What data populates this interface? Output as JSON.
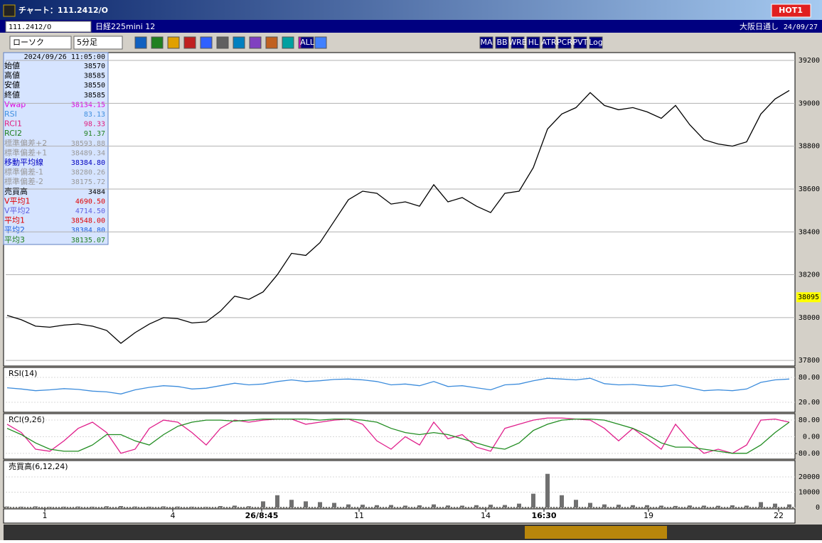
{
  "window": {
    "title": "チャート：111.2412/O",
    "hot": "HOT1"
  },
  "symbol_bar": {
    "code": "111.2412/O",
    "name": "日経225mini 12",
    "session": "大阪日通し",
    "date": "24/09/27"
  },
  "toolbar": {
    "chart_kind": "ローソク",
    "interval": "5分足",
    "buttons": [
      "ALL",
      "MA",
      "BB",
      "WRE",
      "HL",
      "ATR",
      "PCR",
      "PVT",
      "Log"
    ]
  },
  "info_panel": {
    "timestamp": "2024/09/26  11:05:00",
    "rows": [
      [
        "始値",
        "38570"
      ],
      [
        "高値",
        "38585"
      ],
      [
        "安値",
        "38550"
      ],
      [
        "終値",
        "38585"
      ],
      [
        "Vwap",
        "38134.15"
      ],
      [
        "RSI",
        "83.13"
      ],
      [
        "RCI1",
        "98.33"
      ],
      [
        "RCI2",
        "91.37"
      ],
      [
        "標準偏差+2",
        "38593.88"
      ],
      [
        "標準偏差+1",
        "38489.34"
      ],
      [
        "移動平均線",
        "38384.80"
      ],
      [
        "標準偏差-1",
        "38280.26"
      ],
      [
        "標準偏差-2",
        "38175.72"
      ],
      [
        "売買高",
        "3484"
      ],
      [
        "V平均1",
        "4690.50"
      ],
      [
        "V平均2",
        "4714.50"
      ],
      [
        "平均1",
        "38548.00"
      ],
      [
        "平均2",
        "38384.80"
      ],
      [
        "平均3",
        "38135.07"
      ]
    ]
  },
  "chart_data": [
    {
      "type": "line",
      "color": "#000000",
      "last_label": 38095,
      "grid": true,
      "xlim": [
        -0.1,
        55.4
      ],
      "ylim": [
        37774,
        39230
      ],
      "yticks": [
        39200,
        39000,
        38800,
        38600,
        38400,
        38200,
        38000,
        37800
      ],
      "xticks": [
        {
          "value": 2.65,
          "label": "1"
        },
        {
          "value": 11.65,
          "label": "4"
        },
        {
          "value": 17.9,
          "label": "26/8:45"
        },
        {
          "value": 24.75,
          "label": "11"
        },
        {
          "value": 33.65,
          "label": "14"
        },
        {
          "value": 37.75,
          "label": "16:30"
        },
        {
          "value": 45.1,
          "label": "19"
        },
        {
          "value": 54.25,
          "label": "22"
        }
      ],
      "values": [
        38010,
        37990,
        37960,
        37955,
        37965,
        37970,
        37960,
        37940,
        37880,
        37930,
        37970,
        38000,
        37995,
        37975,
        37980,
        38030,
        38100,
        38085,
        38120,
        38200,
        38300,
        38290,
        38350,
        38450,
        38550,
        38590,
        38580,
        38530,
        38540,
        38520,
        38620,
        38540,
        38560,
        38520,
        38490,
        38580,
        38590,
        38700,
        38880,
        38950,
        38980,
        39050,
        38990,
        38970,
        38980,
        38960,
        38930,
        38990,
        38900,
        38830,
        38810,
        38800,
        38820,
        38950,
        39020,
        39060
      ]
    },
    {
      "type": "line",
      "title": "RSI(14)",
      "xlim": [
        -0.1,
        55.4
      ],
      "ylim": [
        -4,
        104
      ],
      "yticks": [
        {
          "value": 80,
          "label": "80.00"
        },
        {
          "value": 20,
          "label": "20.00"
        }
      ],
      "series": [
        {
          "color": "#3c8cdc",
          "values": [
            55,
            52,
            48,
            50,
            53,
            51,
            47,
            45,
            40,
            50,
            56,
            60,
            58,
            52,
            54,
            60,
            66,
            62,
            64,
            70,
            74,
            70,
            72,
            75,
            76,
            74,
            70,
            62,
            64,
            60,
            70,
            58,
            60,
            55,
            50,
            62,
            64,
            72,
            78,
            76,
            74,
            78,
            65,
            62,
            63,
            60,
            58,
            62,
            55,
            48,
            50,
            48,
            52,
            68,
            74,
            76
          ]
        }
      ]
    },
    {
      "type": "line",
      "title": "RCI(9,26)",
      "xlim": [
        -0.1,
        55.4
      ],
      "ylim": [
        -108,
        111
      ],
      "yticks": [
        {
          "value": 80,
          "label": "80.00"
        },
        {
          "value": 0,
          "label": "0.00"
        },
        {
          "value": -80,
          "label": "-80.00"
        }
      ],
      "series": [
        {
          "color": "#e0208c",
          "values": [
            60,
            20,
            -60,
            -70,
            -20,
            40,
            70,
            20,
            -80,
            -60,
            40,
            80,
            70,
            20,
            -40,
            40,
            80,
            70,
            80,
            85,
            85,
            60,
            70,
            80,
            85,
            60,
            -20,
            -60,
            0,
            -40,
            70,
            -10,
            10,
            -50,
            -70,
            40,
            60,
            80,
            90,
            90,
            85,
            80,
            40,
            -20,
            40,
            -10,
            -60,
            60,
            -20,
            -80,
            -60,
            -80,
            -40,
            80,
            85,
            70
          ]
        },
        {
          "color": "#208c20",
          "values": [
            40,
            10,
            -30,
            -60,
            -70,
            -70,
            -40,
            10,
            10,
            -20,
            -40,
            10,
            50,
            70,
            80,
            80,
            75,
            80,
            85,
            85,
            85,
            85,
            80,
            85,
            85,
            80,
            70,
            40,
            20,
            10,
            20,
            10,
            -10,
            -30,
            -50,
            -60,
            -30,
            30,
            60,
            80,
            85,
            85,
            80,
            60,
            40,
            10,
            -30,
            -50,
            -50,
            -60,
            -70,
            -80,
            -80,
            -40,
            20,
            70
          ]
        }
      ]
    },
    {
      "type": "bar",
      "title": "売買高(6,12,24)",
      "color": "#707070",
      "xlim": [
        -0.1,
        55.4
      ],
      "ylim": [
        0,
        30700
      ],
      "yticks": [
        20000,
        10000,
        0
      ],
      "values": [
        600,
        500,
        700,
        400,
        500,
        600,
        500,
        800,
        900,
        600,
        500,
        700,
        600,
        500,
        400,
        900,
        1200,
        800,
        4000,
        8000,
        5000,
        4000,
        3500,
        3000,
        2000,
        1800,
        1500,
        1600,
        1200,
        1400,
        2000,
        1300,
        1200,
        1500,
        1800,
        1600,
        2500,
        9000,
        22000,
        8000,
        5000,
        3000,
        2000,
        1800,
        1500,
        1500,
        1200,
        1000,
        1300,
        1200,
        1100,
        1400,
        1200,
        3500,
        2500,
        2000
      ]
    }
  ]
}
